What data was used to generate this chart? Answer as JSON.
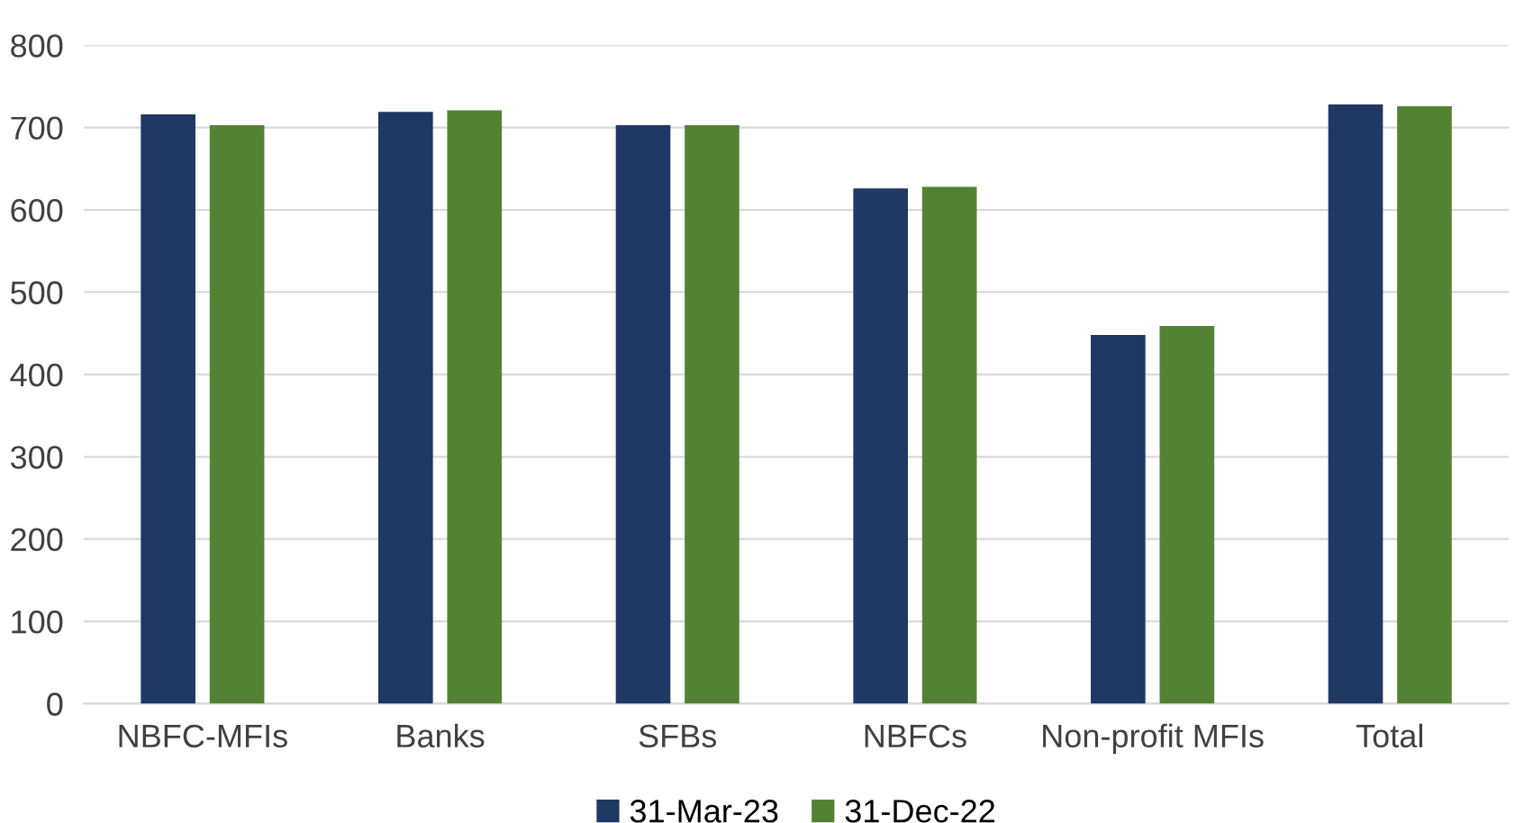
{
  "chart_data": {
    "type": "bar",
    "categories": [
      "NBFC-MFIs",
      "Banks",
      "SFBs",
      "NBFCs",
      "Non-profit MFIs",
      "Total"
    ],
    "series": [
      {
        "name": "31-Mar-23",
        "color": "#1f3864",
        "values": [
          716,
          719,
          703,
          626,
          448,
          728
        ]
      },
      {
        "name": "31-Dec-22",
        "color": "#548235",
        "values": [
          703,
          721,
          703,
          628,
          459,
          726
        ]
      }
    ],
    "ylim": [
      0,
      800
    ],
    "yticks": [
      0,
      100,
      200,
      300,
      400,
      500,
      600,
      700,
      800
    ],
    "grid": "y",
    "legend": "bottom"
  }
}
